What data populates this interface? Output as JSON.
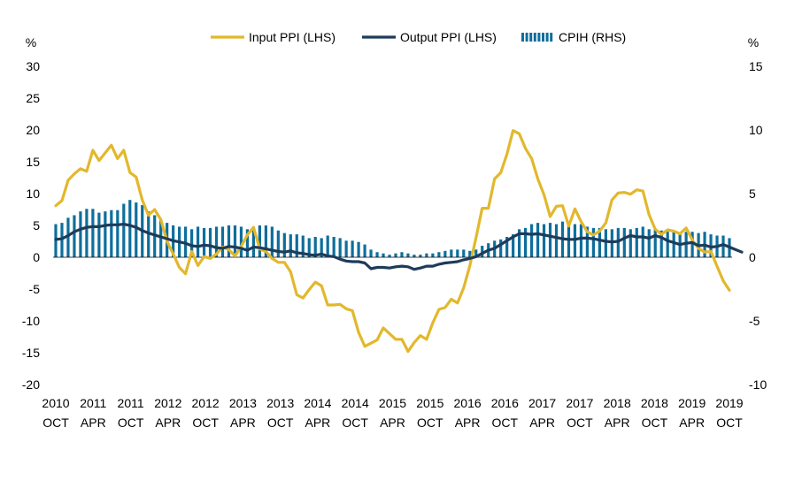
{
  "chart_data": {
    "type": "bar+line",
    "legend": [
      {
        "name": "Input PPI (LHS)",
        "kind": "line",
        "color": "#E2B82C"
      },
      {
        "name": "Output PPI (LHS)",
        "kind": "line",
        "color": "#1E3B5A"
      },
      {
        "name": "CPIH (RHS)",
        "kind": "bar",
        "color": "#0E6E9C"
      }
    ],
    "left_axis": {
      "unit": "%",
      "min": -20,
      "max": 30,
      "ticks": [
        30,
        25,
        20,
        15,
        10,
        5,
        0,
        -5,
        -10,
        -15,
        -20
      ]
    },
    "right_axis": {
      "unit": "%",
      "min": -10,
      "max": 15,
      "ticks": [
        15,
        10,
        5,
        0,
        -5,
        -10
      ]
    },
    "x_ticks": [
      {
        "year": "2010",
        "month": "OCT"
      },
      {
        "year": "2011",
        "month": "APR"
      },
      {
        "year": "2011",
        "month": "OCT"
      },
      {
        "year": "2012",
        "month": "APR"
      },
      {
        "year": "2012",
        "month": "OCT"
      },
      {
        "year": "2013",
        "month": "APR"
      },
      {
        "year": "2013",
        "month": "OCT"
      },
      {
        "year": "2014",
        "month": "APR"
      },
      {
        "year": "2014",
        "month": "OCT"
      },
      {
        "year": "2015",
        "month": "APR"
      },
      {
        "year": "2015",
        "month": "OCT"
      },
      {
        "year": "2016",
        "month": "APR"
      },
      {
        "year": "2016",
        "month": "OCT"
      },
      {
        "year": "2017",
        "month": "APR"
      },
      {
        "year": "2017",
        "month": "OCT"
      },
      {
        "year": "2018",
        "month": "APR"
      },
      {
        "year": "2018",
        "month": "OCT"
      },
      {
        "year": "2019",
        "month": "APR"
      },
      {
        "year": "2019",
        "month": "OCT"
      }
    ],
    "input_ppi": [
      8.1,
      8.9,
      12.1,
      13.1,
      13.9,
      13.5,
      16.8,
      15.2,
      16.4,
      17.6,
      15.5,
      16.8,
      13.3,
      12.6,
      9.0,
      6.6,
      7.5,
      5.9,
      2.5,
      0.5,
      -1.6,
      -2.6,
      0.9,
      -1.3,
      0.1,
      -0.2,
      0.5,
      1.6,
      1.2,
      0.2,
      1.7,
      3.5,
      4.7,
      1.3,
      0.9,
      -0.2,
      -0.8,
      -0.8,
      -2.3,
      -5.9,
      -6.4,
      -5.1,
      -3.9,
      -4.5,
      -7.5,
      -7.5,
      -7.4,
      -8.1,
      -8.4,
      -11.8,
      -14.0,
      -13.5,
      -13.0,
      -11.1,
      -12.0,
      -12.9,
      -12.9,
      -14.8,
      -13.4,
      -12.3,
      -12.9,
      -10.3,
      -8.2,
      -7.9,
      -6.6,
      -7.2,
      -4.8,
      -1.3,
      3.1,
      7.7,
      7.7,
      12.3,
      13.3,
      16.2,
      19.9,
      19.4,
      17.1,
      15.5,
      12.3,
      9.8,
      6.4,
      8.0,
      8.1,
      4.9,
      7.6,
      5.6,
      4.0,
      3.5,
      4.1,
      5.4,
      9.0,
      10.1,
      10.2,
      9.9,
      10.6,
      10.4,
      6.7,
      4.4,
      3.6,
      4.3,
      4.1,
      3.7,
      4.6,
      2.7,
      1.4,
      0.8,
      0.9,
      -1.4,
      -3.7,
      -5.2
    ],
    "output_ppi": [
      2.8,
      2.9,
      3.4,
      4.0,
      4.4,
      4.7,
      4.8,
      4.8,
      5.0,
      5.1,
      5.1,
      5.2,
      5.0,
      4.7,
      4.2,
      3.8,
      3.5,
      3.2,
      2.9,
      2.6,
      2.4,
      2.2,
      1.8,
      1.7,
      1.9,
      1.8,
      1.5,
      1.4,
      1.7,
      1.6,
      1.4,
      1.1,
      1.6,
      1.5,
      1.3,
      1.1,
      0.9,
      0.8,
      1.0,
      0.7,
      0.6,
      0.4,
      0.3,
      0.5,
      0.2,
      0.1,
      -0.3,
      -0.6,
      -0.7,
      -0.7,
      -0.9,
      -1.8,
      -1.6,
      -1.6,
      -1.7,
      -1.5,
      -1.4,
      -1.5,
      -1.9,
      -1.7,
      -1.4,
      -1.4,
      -1.1,
      -0.9,
      -0.8,
      -0.7,
      -0.4,
      -0.2,
      0.1,
      0.6,
      1.1,
      1.4,
      2.0,
      2.6,
      3.2,
      3.7,
      3.7,
      3.6,
      3.7,
      3.5,
      3.3,
      3.1,
      2.9,
      2.8,
      2.8,
      3.0,
      3.0,
      2.9,
      2.7,
      2.5,
      2.4,
      2.5,
      3.0,
      3.4,
      3.2,
      3.2,
      3.0,
      3.4,
      3.1,
      2.6,
      2.3,
      2.0,
      2.2,
      2.3,
      1.8,
      1.9,
      1.6,
      1.7,
      2.0,
      1.6,
      1.2,
      0.8
    ],
    "cpih": [
      2.6,
      2.7,
      3.1,
      3.3,
      3.6,
      3.8,
      3.8,
      3.5,
      3.6,
      3.7,
      3.7,
      4.2,
      4.5,
      4.3,
      4.1,
      3.6,
      3.3,
      2.9,
      2.7,
      2.5,
      2.4,
      2.4,
      2.2,
      2.4,
      2.3,
      2.3,
      2.4,
      2.4,
      2.5,
      2.5,
      2.4,
      2.2,
      2.4,
      2.5,
      2.5,
      2.4,
      2.1,
      1.9,
      1.8,
      1.8,
      1.7,
      1.5,
      1.6,
      1.5,
      1.7,
      1.6,
      1.5,
      1.3,
      1.3,
      1.2,
      1.0,
      0.6,
      0.4,
      0.3,
      0.2,
      0.3,
      0.4,
      0.3,
      0.2,
      0.2,
      0.3,
      0.3,
      0.4,
      0.5,
      0.6,
      0.6,
      0.6,
      0.5,
      0.6,
      0.9,
      1.1,
      1.3,
      1.4,
      1.6,
      1.8,
      2.2,
      2.3,
      2.6,
      2.7,
      2.6,
      2.7,
      2.6,
      2.8,
      2.7,
      2.6,
      2.6,
      2.4,
      2.3,
      2.3,
      2.2,
      2.2,
      2.3,
      2.3,
      2.2,
      2.3,
      2.4,
      2.2,
      2.2,
      2.1,
      2.0,
      2.1,
      1.9,
      2.0,
      2.0,
      1.9,
      2.0,
      1.8,
      1.7,
      1.7,
      1.5
    ]
  }
}
